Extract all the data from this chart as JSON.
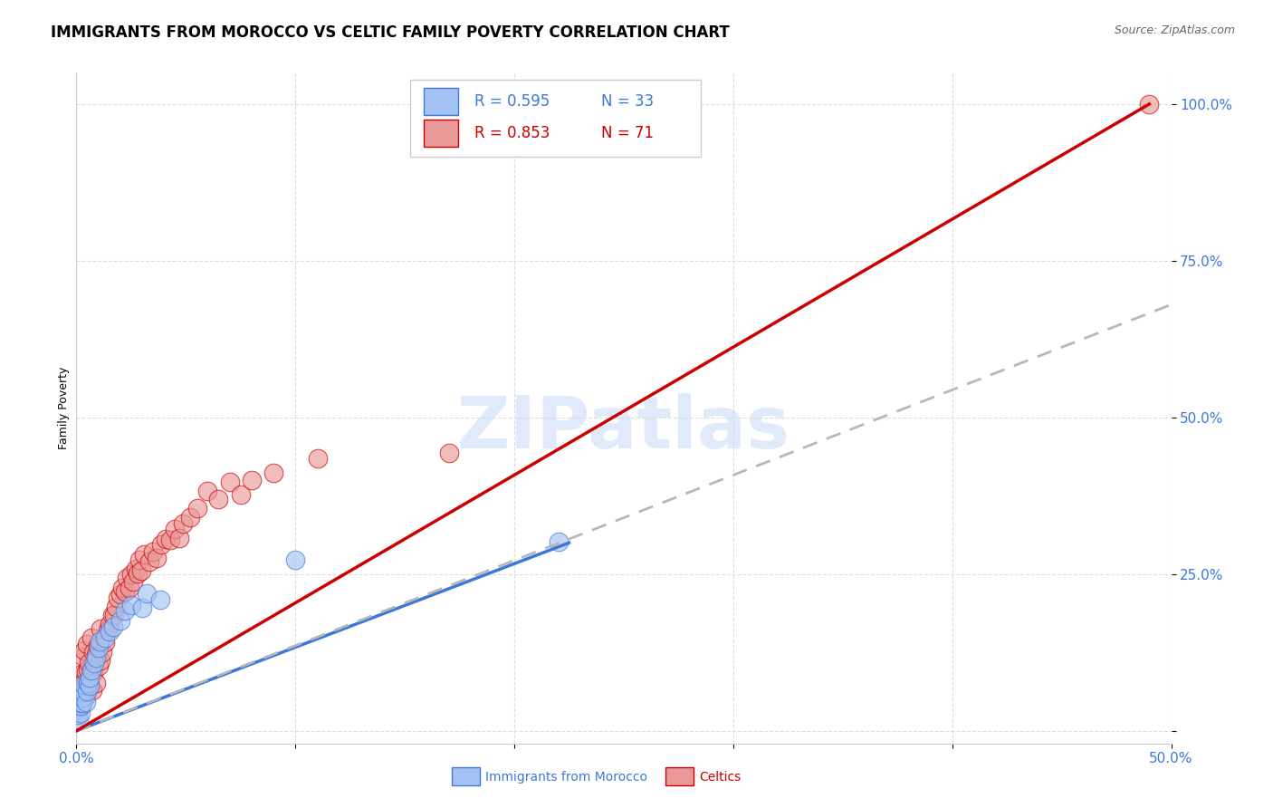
{
  "title": "IMMIGRANTS FROM MOROCCO VS CELTIC FAMILY POVERTY CORRELATION CHART",
  "source": "Source: ZipAtlas.com",
  "ylabel": "Family Poverty",
  "xlim": [
    0.0,
    0.5
  ],
  "ylim": [
    -0.02,
    1.05
  ],
  "xticks": [
    0.0,
    0.1,
    0.2,
    0.3,
    0.4,
    0.5
  ],
  "xticklabels": [
    "0.0%",
    "",
    "",
    "",
    "",
    "50.0%"
  ],
  "yticks": [
    0.0,
    0.25,
    0.5,
    0.75,
    1.0
  ],
  "yticklabels": [
    "",
    "25.0%",
    "50.0%",
    "75.0%",
    "100.0%"
  ],
  "blue_color": "#a4c2f4",
  "pink_color": "#ea9999",
  "blue_line_color": "#3c78d8",
  "pink_line_color": "#cc0000",
  "dashed_line_color": "#b7b7b7",
  "tick_color": "#3c78d8",
  "title_fontsize": 12,
  "axis_label_fontsize": 9,
  "tick_fontsize": 11,
  "morocco_x": [
    0.001,
    0.001,
    0.001,
    0.001,
    0.002,
    0.002,
    0.002,
    0.002,
    0.003,
    0.003,
    0.003,
    0.004,
    0.004,
    0.005,
    0.005,
    0.006,
    0.006,
    0.007,
    0.008,
    0.009,
    0.01,
    0.011,
    0.013,
    0.015,
    0.017,
    0.02,
    0.022,
    0.025,
    0.03,
    0.032,
    0.038,
    0.1,
    0.22
  ],
  "morocco_y": [
    0.02,
    0.03,
    0.04,
    0.05,
    0.03,
    0.04,
    0.05,
    0.06,
    0.04,
    0.05,
    0.06,
    0.05,
    0.07,
    0.06,
    0.08,
    0.07,
    0.09,
    0.1,
    0.11,
    0.12,
    0.13,
    0.14,
    0.15,
    0.16,
    0.17,
    0.18,
    0.19,
    0.2,
    0.2,
    0.22,
    0.21,
    0.27,
    0.3
  ],
  "celtics_x": [
    0.001,
    0.001,
    0.001,
    0.001,
    0.001,
    0.002,
    0.002,
    0.002,
    0.002,
    0.003,
    0.003,
    0.003,
    0.004,
    0.004,
    0.004,
    0.005,
    0.005,
    0.005,
    0.006,
    0.006,
    0.007,
    0.007,
    0.007,
    0.008,
    0.008,
    0.009,
    0.009,
    0.01,
    0.01,
    0.011,
    0.011,
    0.012,
    0.013,
    0.014,
    0.015,
    0.016,
    0.017,
    0.018,
    0.019,
    0.02,
    0.021,
    0.022,
    0.023,
    0.024,
    0.025,
    0.026,
    0.027,
    0.028,
    0.029,
    0.03,
    0.031,
    0.033,
    0.035,
    0.037,
    0.039,
    0.041,
    0.043,
    0.045,
    0.047,
    0.049,
    0.052,
    0.055,
    0.06,
    0.065,
    0.07,
    0.075,
    0.08,
    0.09,
    0.11,
    0.17,
    0.49
  ],
  "celtics_y": [
    0.03,
    0.04,
    0.05,
    0.06,
    0.07,
    0.04,
    0.05,
    0.07,
    0.09,
    0.05,
    0.08,
    0.12,
    0.06,
    0.09,
    0.13,
    0.07,
    0.1,
    0.14,
    0.08,
    0.11,
    0.06,
    0.1,
    0.15,
    0.09,
    0.13,
    0.08,
    0.12,
    0.1,
    0.14,
    0.11,
    0.16,
    0.13,
    0.14,
    0.16,
    0.17,
    0.18,
    0.19,
    0.2,
    0.21,
    0.22,
    0.23,
    0.22,
    0.24,
    0.23,
    0.25,
    0.24,
    0.26,
    0.25,
    0.27,
    0.26,
    0.28,
    0.27,
    0.29,
    0.28,
    0.3,
    0.31,
    0.3,
    0.32,
    0.31,
    0.33,
    0.34,
    0.36,
    0.38,
    0.37,
    0.4,
    0.38,
    0.4,
    0.41,
    0.43,
    0.44,
    1.0
  ],
  "morocco_line_x": [
    0.0,
    0.225
  ],
  "morocco_line_y": [
    0.0,
    0.3
  ],
  "celtic_line_x": [
    0.0,
    0.49
  ],
  "celtic_line_y": [
    0.0,
    1.0
  ],
  "dashed_line_x": [
    0.0,
    0.5
  ],
  "dashed_line_y": [
    0.0,
    0.68
  ]
}
